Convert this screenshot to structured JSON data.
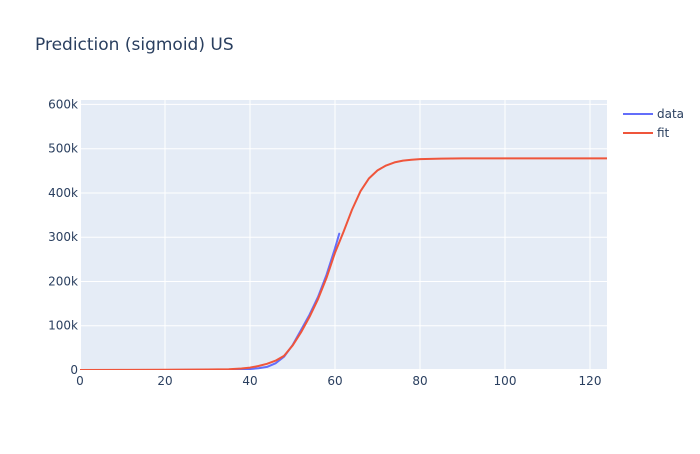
{
  "chart_data": {
    "type": "line",
    "title": "Prediction (sigmoid) US",
    "xlabel": "",
    "ylabel": "",
    "xlim": [
      0,
      124
    ],
    "ylim": [
      0,
      610000
    ],
    "x_ticks": [
      0,
      20,
      40,
      60,
      80,
      100,
      120
    ],
    "x_tick_labels": [
      "0",
      "20",
      "40",
      "60",
      "80",
      "100",
      "120"
    ],
    "y_ticks": [
      0,
      100000,
      200000,
      300000,
      400000,
      500000,
      600000
    ],
    "y_tick_labels": [
      "0",
      "100k",
      "200k",
      "300k",
      "400k",
      "500k",
      "600k"
    ],
    "grid": true,
    "legend_position": "top-right",
    "series": [
      {
        "name": "data",
        "color": "#636efa",
        "x": [
          0,
          10,
          20,
          30,
          35,
          38,
          40,
          42,
          44,
          46,
          48,
          50,
          52,
          54,
          56,
          58,
          60,
          61
        ],
        "y": [
          0,
          0,
          100,
          300,
          600,
          1200,
          2200,
          4000,
          7000,
          15000,
          30000,
          56000,
          90000,
          125000,
          165000,
          215000,
          275000,
          308000
        ]
      },
      {
        "name": "fit",
        "color": "#ef553b",
        "x": [
          0,
          10,
          20,
          30,
          35,
          38,
          40,
          42,
          44,
          46,
          48,
          50,
          52,
          54,
          56,
          58,
          60,
          62,
          64,
          66,
          68,
          70,
          72,
          74,
          76,
          78,
          80,
          85,
          90,
          100,
          110,
          124
        ],
        "y": [
          0,
          200,
          500,
          1000,
          1800,
          3500,
          5500,
          9000,
          14000,
          21000,
          32000,
          55000,
          85000,
          120000,
          160000,
          208000,
          265000,
          312000,
          362000,
          404000,
          433000,
          451000,
          462000,
          469000,
          473000,
          475000,
          476500,
          477500,
          478000,
          478000,
          478000,
          478000
        ]
      }
    ]
  }
}
